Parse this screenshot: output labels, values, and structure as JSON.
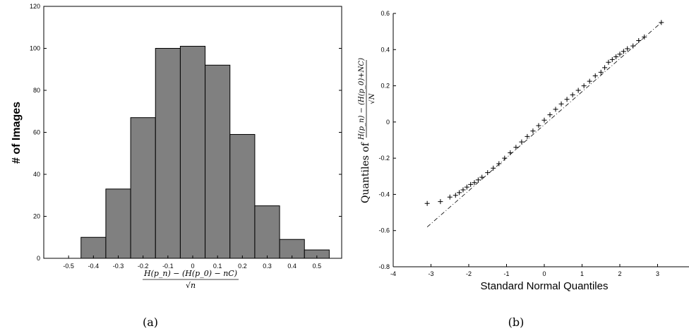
{
  "figure": {
    "left_caption": "(a)",
    "right_caption": "(b)"
  },
  "chart_data": [
    {
      "type": "bar",
      "subtype": "histogram",
      "ylabel": "# of Images",
      "xlabel_parts": {
        "numerator": "H(p_n) − (H(p_0) − nC)",
        "denominator": "√n"
      },
      "xlim": [
        -0.6,
        0.6
      ],
      "ylim": [
        0,
        120
      ],
      "xticks": [
        "-0.5",
        "-0.4",
        "-0.3",
        "-0.2",
        "-0.1",
        "0",
        "0.1",
        "0.2",
        "0.3",
        "0.4",
        "0.5"
      ],
      "yticks": [
        "0",
        "20",
        "40",
        "60",
        "80",
        "100",
        "120"
      ],
      "bin_width": 0.1,
      "bins": [
        {
          "x": -0.4,
          "value": 10
        },
        {
          "x": -0.3,
          "value": 33
        },
        {
          "x": -0.2,
          "value": 67
        },
        {
          "x": -0.1,
          "value": 100
        },
        {
          "x": 0.0,
          "value": 101
        },
        {
          "x": 0.1,
          "value": 92
        },
        {
          "x": 0.2,
          "value": 59
        },
        {
          "x": 0.3,
          "value": 25
        },
        {
          "x": 0.4,
          "value": 9
        },
        {
          "x": 0.5,
          "value": 4
        }
      ],
      "bar_color": "#808080",
      "grid": false
    },
    {
      "type": "scatter",
      "subtype": "qq-plot",
      "xlabel": "Standard Normal Quantiles",
      "ylabel_parts": {
        "prefix": "Quantiles of",
        "numerator": "H(p_n) − (H(p_0)+NC)",
        "denominator": "√N"
      },
      "xlim": [
        -4,
        4
      ],
      "ylim": [
        -0.8,
        0.6
      ],
      "xticks": [
        "-4",
        "-3",
        "-2",
        "-1",
        "0",
        "1",
        "2",
        "3",
        "4"
      ],
      "yticks": [
        "-0.8",
        "-0.6",
        "-0.4",
        "-0.2",
        "0",
        "0.2",
        "0.4",
        "0.6"
      ],
      "reference_line": {
        "x": [
          -3.1,
          3.1
        ],
        "y": [
          -0.58,
          0.55
        ],
        "style": "dash-dot"
      },
      "point_marker": "+",
      "points_x": [
        -3.1,
        -2.75,
        -2.5,
        -2.35,
        -2.25,
        -2.15,
        -2.05,
        -1.95,
        -1.85,
        -1.75,
        -1.65,
        -1.5,
        -1.35,
        -1.2,
        -1.05,
        -0.9,
        -0.75,
        -0.6,
        -0.45,
        -0.3,
        -0.15,
        0.0,
        0.15,
        0.3,
        0.45,
        0.6,
        0.75,
        0.9,
        1.05,
        1.2,
        1.35,
        1.5,
        1.6,
        1.7,
        1.8,
        1.9,
        2.0,
        2.1,
        2.2,
        2.35,
        2.5,
        2.65,
        3.1
      ],
      "points_y": [
        -0.45,
        -0.44,
        -0.415,
        -0.405,
        -0.39,
        -0.375,
        -0.36,
        -0.345,
        -0.335,
        -0.32,
        -0.305,
        -0.28,
        -0.255,
        -0.23,
        -0.2,
        -0.17,
        -0.14,
        -0.11,
        -0.08,
        -0.05,
        -0.02,
        0.01,
        0.04,
        0.07,
        0.1,
        0.125,
        0.15,
        0.175,
        0.2,
        0.225,
        0.255,
        0.275,
        0.3,
        0.33,
        0.345,
        0.36,
        0.375,
        0.39,
        0.405,
        0.42,
        0.45,
        0.47,
        0.55
      ],
      "grid": false
    }
  ]
}
